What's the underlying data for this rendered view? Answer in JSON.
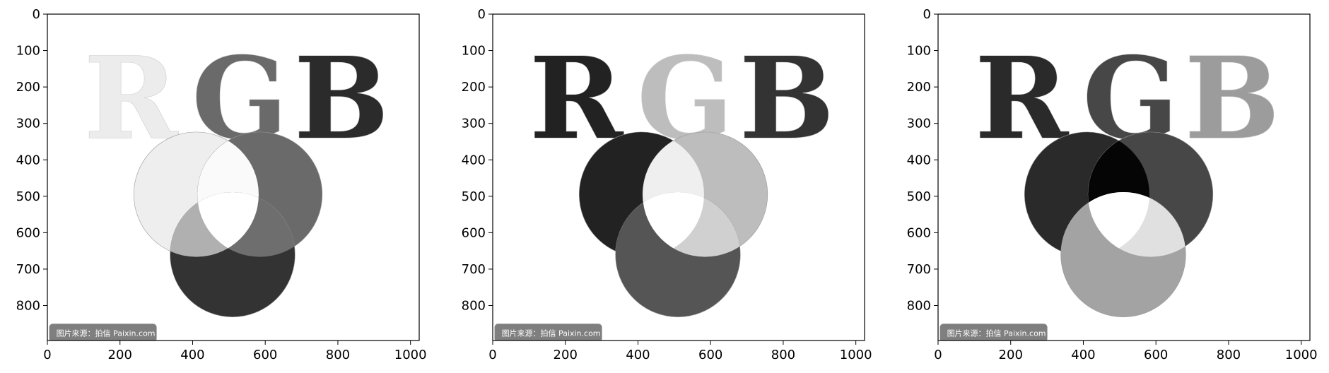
{
  "title": "",
  "axes": {
    "x_ticks": [
      "0",
      "200",
      "400",
      "600",
      "800",
      "1000"
    ],
    "y_ticks": [
      "0",
      "100",
      "200",
      "300",
      "400",
      "500",
      "600",
      "700",
      "800"
    ]
  },
  "panels": [
    {
      "letters": [
        "R",
        "G",
        "B"
      ],
      "letter_colors": [
        "#ececec",
        "#6a6a6a",
        "#2b2b2b"
      ],
      "circle_colors": [
        "#eeeeee",
        "#6a6a6a",
        "#333333"
      ],
      "overlap_colors": {
        "rg": "#fafafa",
        "rb": "#b0b0b0",
        "gb": "#6e6e6e",
        "rgb": "#ffffff"
      },
      "watermark": "图片来源：拍信 Paixin.com"
    },
    {
      "letters": [
        "R",
        "G",
        "B"
      ],
      "letter_colors": [
        "#222222",
        "#bdbdbd",
        "#333333"
      ],
      "circle_colors": [
        "#222222",
        "#bdbdbd",
        "#555555"
      ],
      "overlap_colors": {
        "rg": "#efefef",
        "rb": "#555555",
        "gb": "#d0d0d0",
        "rgb": "#ffffff"
      },
      "watermark": "图片来源：拍信 Paixin.com"
    },
    {
      "letters": [
        "R",
        "G",
        "B"
      ],
      "letter_colors": [
        "#2a2a2a",
        "#474747",
        "#9c9c9c"
      ],
      "circle_colors": [
        "#2a2a2a",
        "#474747",
        "#a3a3a3"
      ],
      "overlap_colors": {
        "rg": "#050505",
        "rb": "#a3a3a3",
        "gb": "#e0e0e0",
        "rgb": "#ffffff"
      },
      "watermark": "图片来源：拍信 Paixin.com"
    }
  ]
}
